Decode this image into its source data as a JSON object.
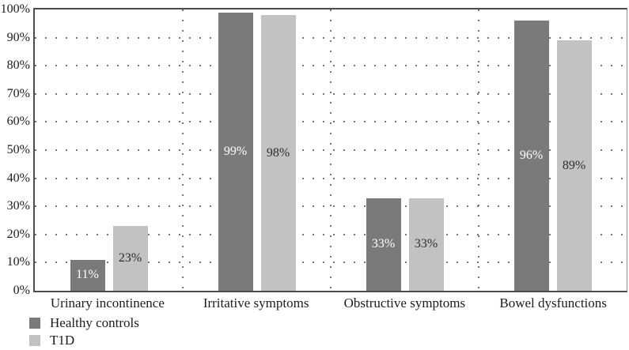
{
  "chart_data": {
    "type": "bar",
    "title": "",
    "xlabel": "",
    "ylabel": "",
    "categories": [
      "Urinary incontinence",
      "Irritative symptoms",
      "Obstructive symptoms",
      "Bowel dysfunctions"
    ],
    "series": [
      {
        "name": "Healthy controls",
        "values": [
          11,
          99,
          33,
          96
        ],
        "labels": [
          "11%",
          "99%",
          "33%",
          "96%"
        ],
        "color": "#7a7a7a",
        "label_color": "#ffffff"
      },
      {
        "name": "T1D",
        "values": [
          23,
          98,
          33,
          89
        ],
        "labels": [
          "23%",
          "98%",
          "33%",
          "89%"
        ],
        "color": "#c2c2c2",
        "label_color": "#2d2d2d"
      }
    ],
    "ylim": [
      0,
      100
    ],
    "y_tick_labels": [
      "100%",
      "90%",
      "80%",
      "70%",
      "60%",
      "50%",
      "40%",
      "30%",
      "20%",
      "10%",
      "0%"
    ],
    "grid": {
      "horizontal": "dotted",
      "vertical": "dotted"
    },
    "legend_position": "bottom-left",
    "colors": {
      "axis": "#4c4c4c",
      "grid": "#757575",
      "text": "#1c1c1c",
      "background": "#ffffff"
    }
  }
}
